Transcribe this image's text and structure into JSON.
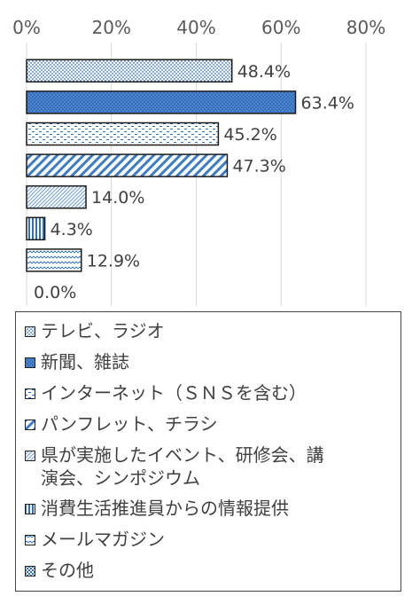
{
  "chart_data": {
    "type": "bar",
    "orientation": "horizontal",
    "x_ticks": [
      "0%",
      "20%",
      "40%",
      "60%",
      "80%"
    ],
    "xlim": [
      0,
      80
    ],
    "grid": true,
    "legend_position": "bottom",
    "categories": [
      "テレビ、ラジオ",
      "新聞、雑誌",
      "インターネット（ＳＮＳを含む）",
      "パンフレット、チラシ",
      "県が実施したイベント、研修会、講演会、シンポジウム",
      "消費生活推進員からの情報提供",
      "メールマガジン",
      "その他"
    ],
    "values": [
      48.4,
      63.4,
      45.2,
      47.3,
      14.0,
      4.3,
      12.9,
      0.0
    ],
    "data_labels": [
      "48.4%",
      "63.4%",
      "45.2%",
      "47.3%",
      "14.0%",
      "4.3%",
      "12.9%",
      "0.0%"
    ]
  },
  "legend": {
    "items": [
      {
        "label": "テレビ、ラジオ",
        "pattern": "dots"
      },
      {
        "label": "新聞、雑誌",
        "pattern": "blue-dots"
      },
      {
        "label": "インターネット（ＳＮＳを含む）",
        "pattern": "dashes"
      },
      {
        "label": "パンフレット、チラシ",
        "pattern": "diagonal"
      },
      {
        "label": "県が実施したイベント、研修会、講\n演会、シンポジウム",
        "pattern": "fine-diagonal"
      },
      {
        "label": "消費生活推進員からの情報提供",
        "pattern": "vertical"
      },
      {
        "label": "メールマガジン",
        "pattern": "wave"
      },
      {
        "label": "その他",
        "pattern": "checker"
      }
    ]
  }
}
